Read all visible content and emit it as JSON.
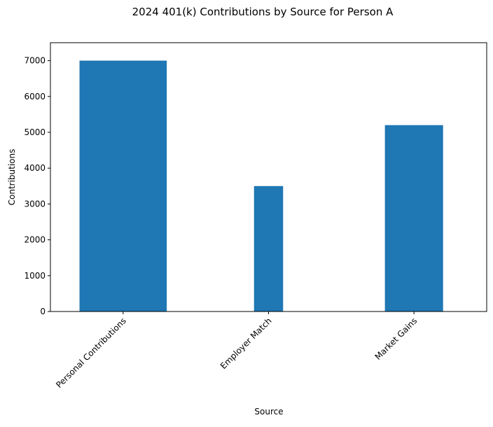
{
  "chart_data": {
    "type": "bar",
    "title": "2024 401(k) Contributions by Source for Person A",
    "xlabel": "Source",
    "ylabel": "Contributions",
    "categories": [
      "Personal Contributions",
      "Employer Match",
      "Market Gains"
    ],
    "values": [
      7000,
      3500,
      5200
    ],
    "relative_widths": [
      0.6,
      0.2,
      0.4
    ],
    "ylim": [
      0,
      7500
    ],
    "yticks": [
      0,
      1000,
      2000,
      3000,
      4000,
      5000,
      6000,
      7000
    ],
    "grid": false,
    "legend": "none",
    "bar_color": "#1f77b4"
  }
}
